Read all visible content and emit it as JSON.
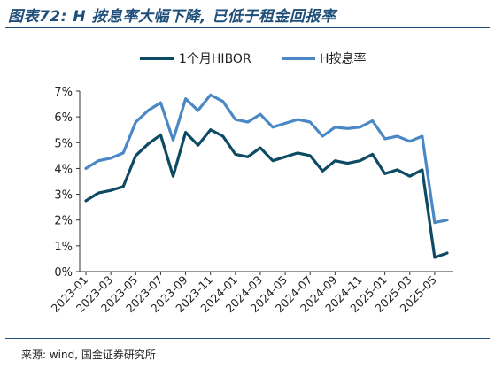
{
  "header": {
    "title": "图表72: H 按息率大幅下降, 已低于租金回报率"
  },
  "footer": {
    "source": "来源: wind, 国金证券研究所"
  },
  "colors": {
    "hibor": "#0d4a63",
    "h_yield": "#4a87c5",
    "title": "#1f4e79",
    "axis": "#333333"
  },
  "chart_data": {
    "type": "line",
    "legend_position": "top-center",
    "grid": false,
    "ylim": [
      0,
      7
    ],
    "yticks": [
      "0%",
      "1%",
      "2%",
      "3%",
      "4%",
      "5%",
      "6%",
      "7%"
    ],
    "xticks": [
      "2023-01",
      "2023-03",
      "2023-05",
      "2023-07",
      "2023-09",
      "2023-11",
      "2024-01",
      "2024-03",
      "2024-05",
      "2024-07",
      "2024-09",
      "2024-11",
      "2025-01",
      "2025-03",
      "2025-05"
    ],
    "x": [
      "2023-01",
      "2023-02",
      "2023-03",
      "2023-04",
      "2023-05",
      "2023-06",
      "2023-07",
      "2023-08",
      "2023-09",
      "2023-10",
      "2023-11",
      "2023-12",
      "2024-01",
      "2024-02",
      "2024-03",
      "2024-04",
      "2024-05",
      "2024-06",
      "2024-07",
      "2024-08",
      "2024-09",
      "2024-10",
      "2024-11",
      "2024-12",
      "2025-01",
      "2025-02",
      "2025-03",
      "2025-04",
      "2025-05",
      "2025-06"
    ],
    "series": [
      {
        "name": "1个月HIBOR",
        "values": [
          2.75,
          3.05,
          3.15,
          3.3,
          4.5,
          4.95,
          5.3,
          3.7,
          5.4,
          4.9,
          5.5,
          5.25,
          4.55,
          4.45,
          4.8,
          4.3,
          4.45,
          4.6,
          4.5,
          3.9,
          4.3,
          4.2,
          4.3,
          4.55,
          3.8,
          3.95,
          3.7,
          3.95,
          0.55,
          0.72
        ]
      },
      {
        "name": "H按息率",
        "values": [
          4.0,
          4.3,
          4.4,
          4.6,
          5.8,
          6.25,
          6.55,
          5.1,
          6.7,
          6.25,
          6.85,
          6.6,
          5.9,
          5.8,
          6.1,
          5.6,
          5.75,
          5.9,
          5.8,
          5.25,
          5.6,
          5.55,
          5.6,
          5.85,
          5.15,
          5.25,
          5.05,
          5.25,
          1.9,
          2.0
        ]
      }
    ]
  }
}
